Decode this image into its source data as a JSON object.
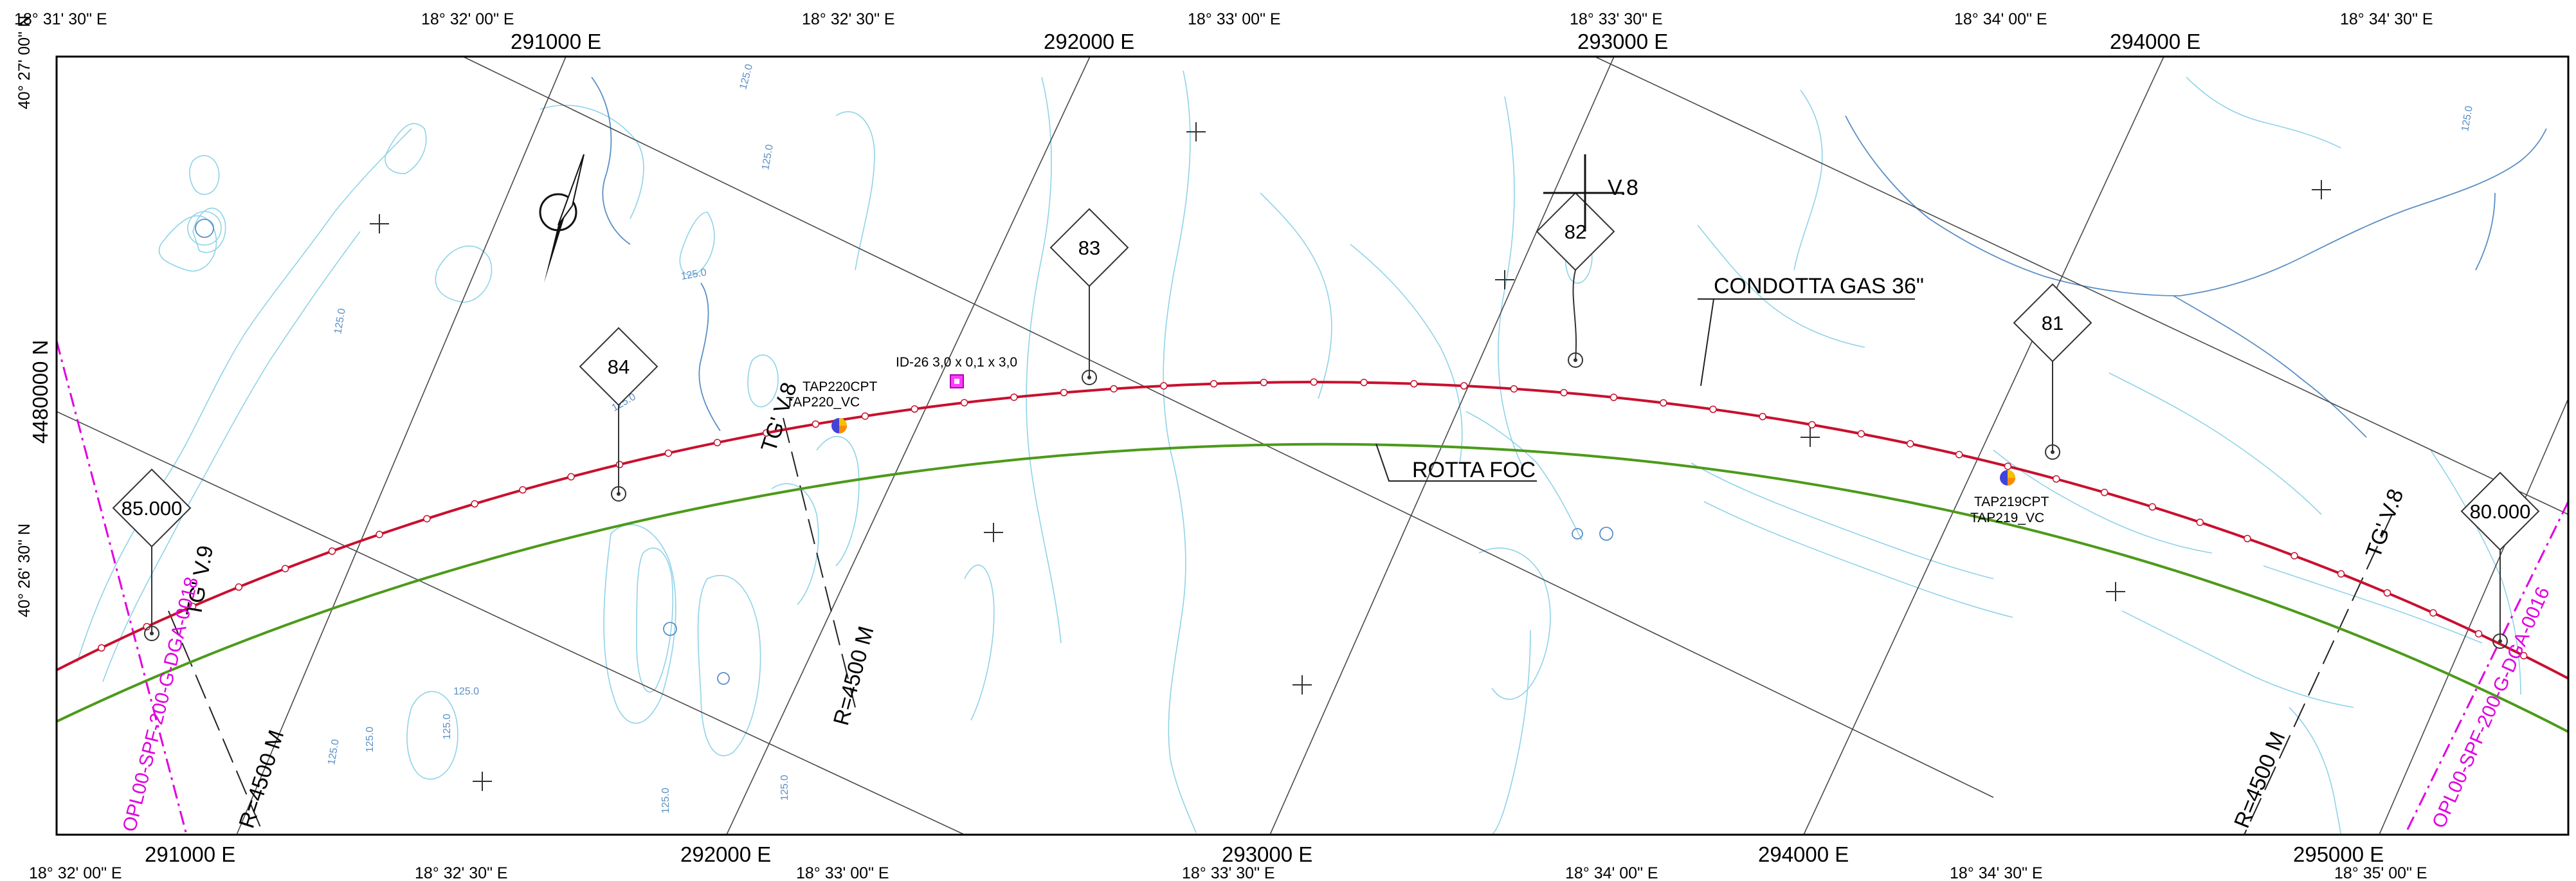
{
  "title": "",
  "top_coords": [
    "18° 31' 30\" E",
    "18° 32' 00\" E",
    "18° 32' 30\" E",
    "18° 33' 00\" E",
    "18° 33' 30\" E",
    "18° 34' 00\" E",
    "18° 34' 30\" E"
  ],
  "bottom_coords": [
    "18° 32' 00\" E",
    "18° 32' 30\" E",
    "18° 33' 00\" E",
    "18° 33' 30\" E",
    "18° 34' 00\" E",
    "18° 34' 30\" E",
    "18° 35' 00\" E"
  ],
  "top_grid": [
    "291000 E",
    "292000 E",
    "293000 E",
    "294000 E"
  ],
  "bottom_grid": [
    "291000 E",
    "292000 E",
    "293000 E",
    "294000 E",
    "295000 E"
  ],
  "left_coords": [
    "40° 27' 00\" N",
    "4480000 N",
    "40° 26' 30\" N"
  ],
  "kp_markers": [
    "85.000",
    "84",
    "83",
    "82",
    "81",
    "80.000"
  ],
  "labels": {
    "condotta": "CONDOTTA GAS 36\"",
    "rotta": "ROTTA FOC",
    "v8": "V.8",
    "tg_v9": "TG' V.9",
    "tg_v8_a": "TG' V.8",
    "tg_v8_b": "TG' V.8",
    "radius_1": "R=4500 M",
    "radius_2": "R=4500 M",
    "radius_3": "R=4500 M",
    "id26": "ID-26 3,0 x 0,1 x 3,0",
    "tap220cpt": "TAP220CPT",
    "tap220vc": "TAP220_VC",
    "tap219cpt": "TAP219CPT",
    "tap219vc": "TAP219_VC",
    "crossing_left": "OPL00-SPF-200-G-DGA-0018",
    "crossing_right": "OPL00-SPF-200-G-DGA-0016"
  },
  "contour_labels": [
    "125.0",
    "125.0",
    "125.0",
    "125.0",
    "125.0",
    "125.0",
    "125.0",
    "125.0",
    "125.0",
    "125.0",
    "125.0",
    "125.0"
  ],
  "colors": {
    "pipeline": "#c8102e",
    "cable_route": "#4c9a1a",
    "bathymetry": "#8fd3e8",
    "bathymetry_deep": "#5a8fc4",
    "crossing": "#e000e0",
    "grid": "#4a4a4a",
    "frame": "#000000"
  },
  "icons": [
    "north-arrow-icon",
    "grid-cross-icon",
    "survey-point-icon",
    "target-box-icon"
  ]
}
